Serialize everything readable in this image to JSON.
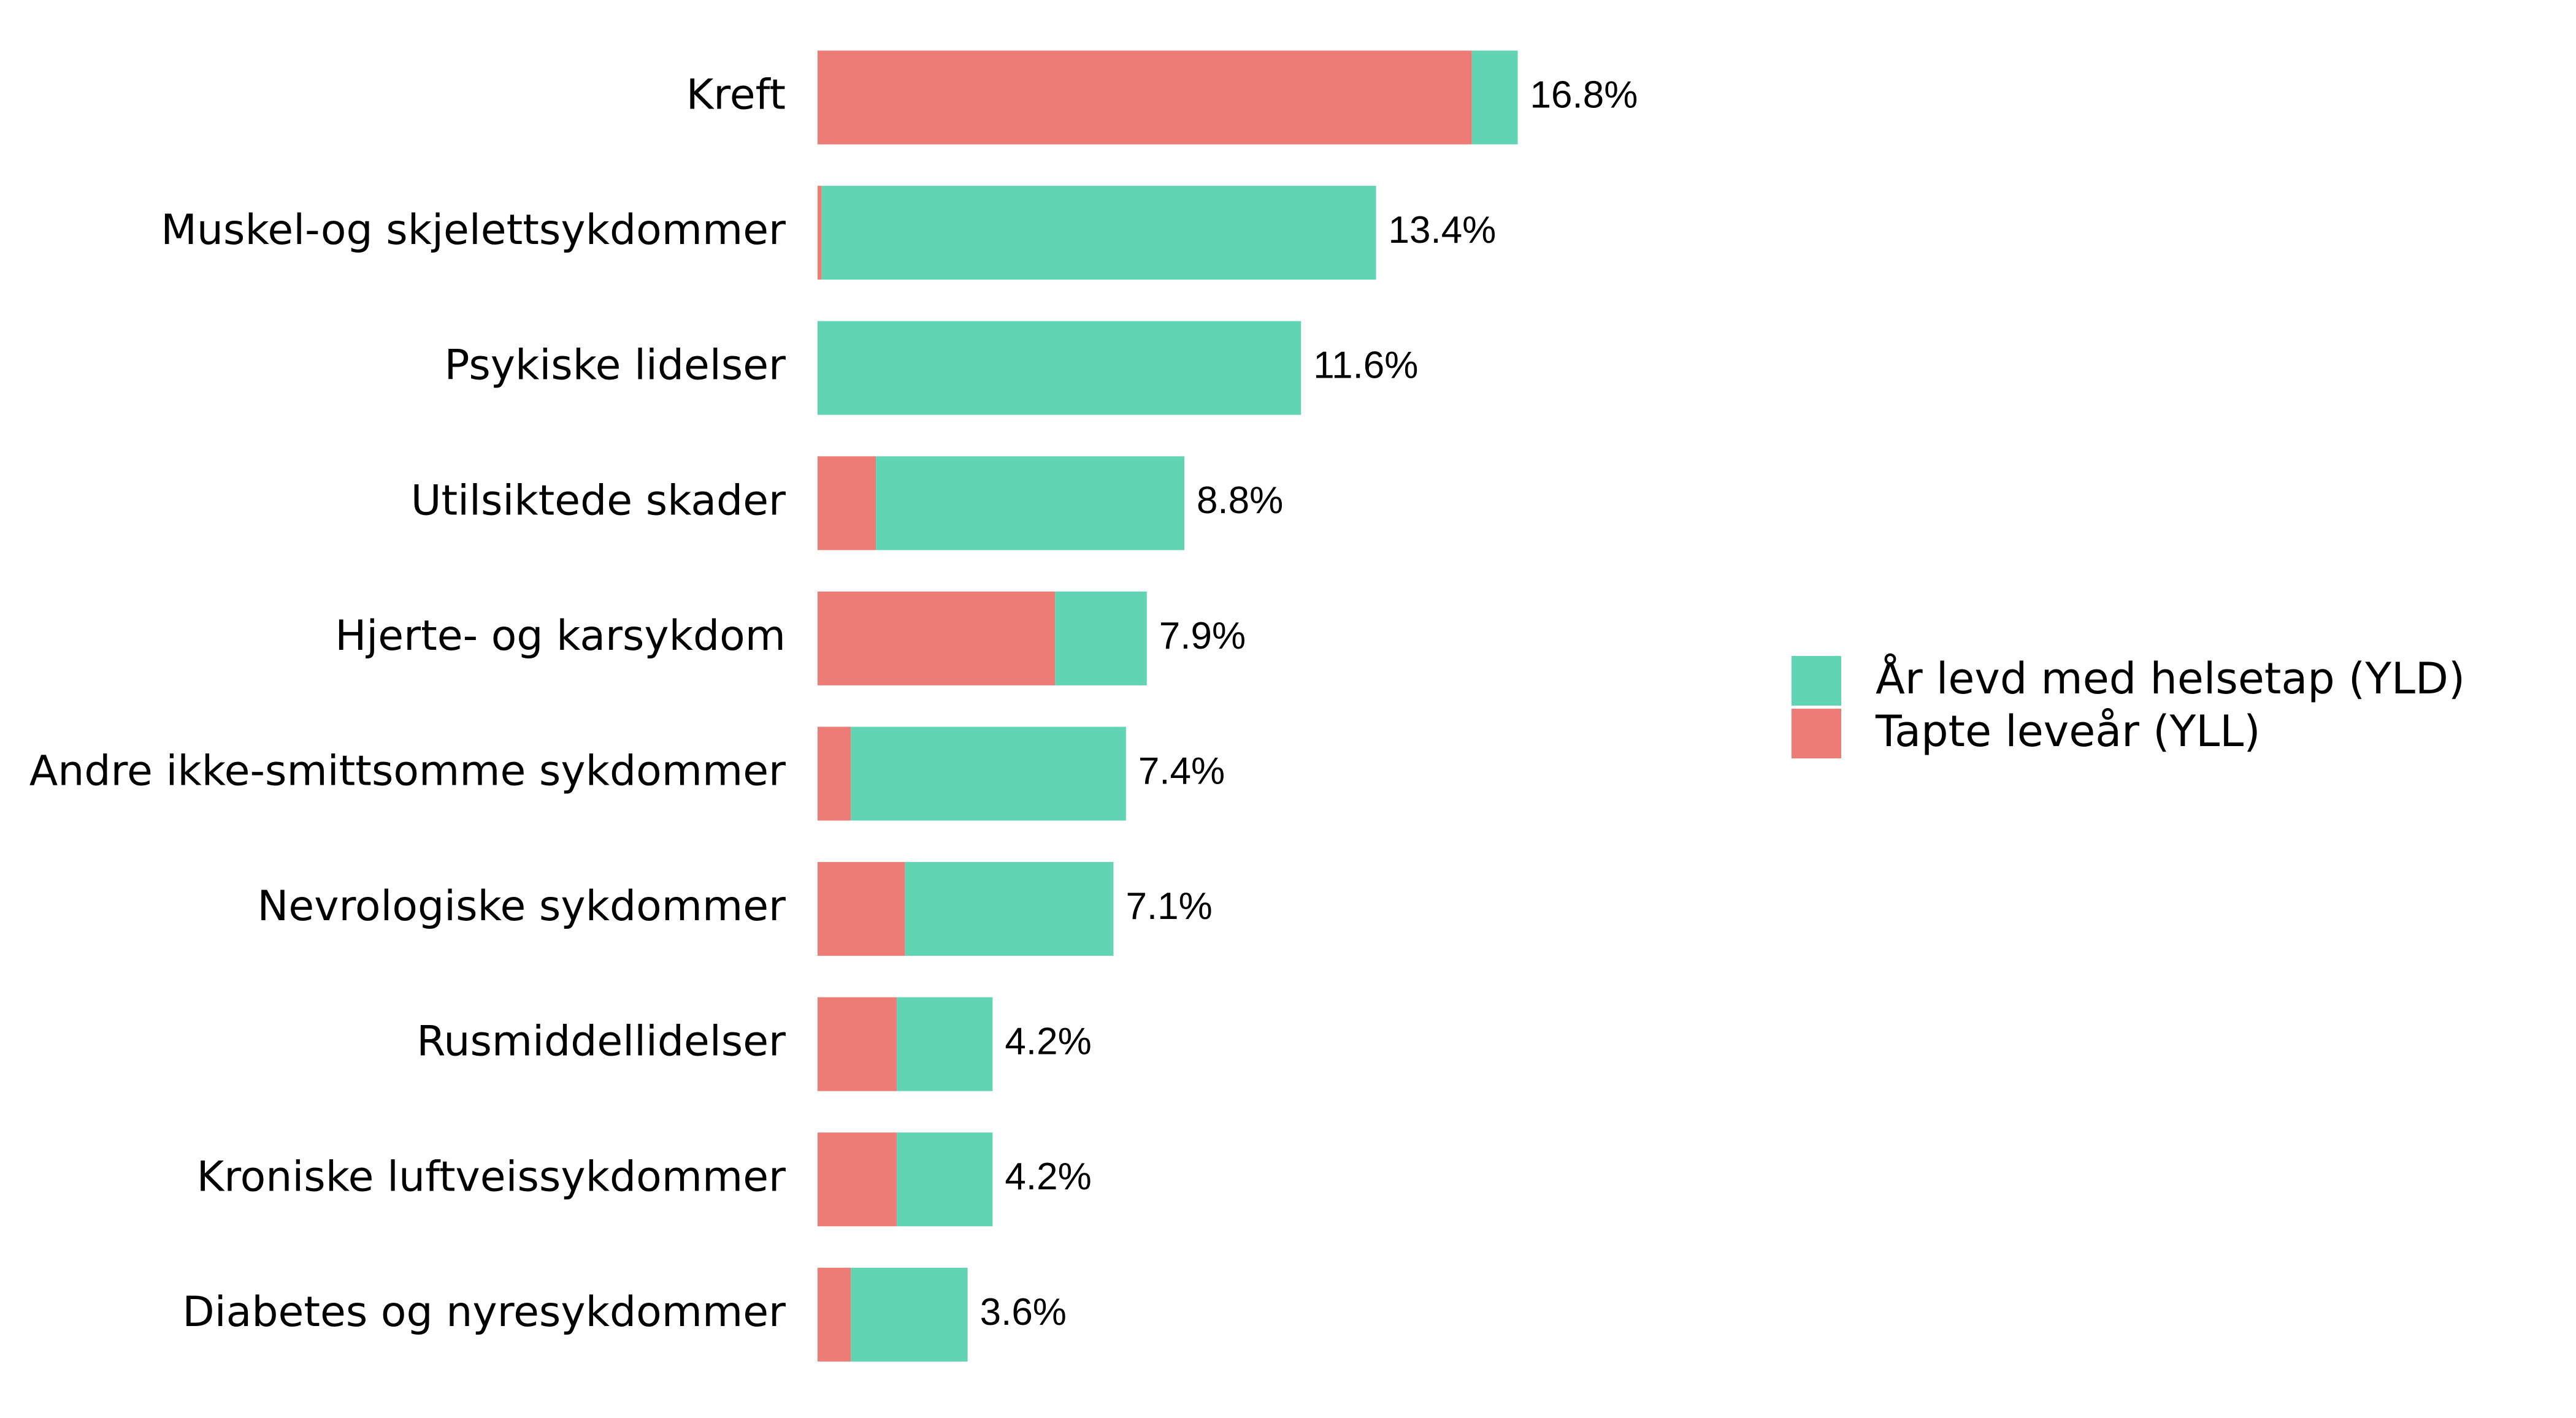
{
  "chart_data": {
    "type": "stacked-bar-horizontal",
    "categories": [
      "Kreft",
      "Muskel-og skjelettsykdommer",
      "Psykiske lidelser",
      "Utilsiktede skader",
      "Hjerte- og karsykdom",
      "Andre ikke-smittsomme sykdommer",
      "Nevrologiske sykdommer",
      "Rusmiddellidelser",
      "Kroniske luftveissykdommer",
      "Diabetes og nyresykdommer"
    ],
    "series": [
      {
        "name": "Tapte leveår (YLL)",
        "color": "#ec7c75",
        "values": [
          15.7,
          0.1,
          0,
          1.4,
          5.7,
          0.8,
          2.1,
          1.9,
          1.9,
          0.8
        ]
      },
      {
        "name": "År levd med helsetap (YLD)",
        "color": "#61d4b3",
        "values": [
          1.1,
          13.3,
          11.6,
          7.4,
          2.2,
          6.6,
          5.0,
          2.3,
          2.3,
          2.8
        ]
      }
    ],
    "totals": {
      "values": [
        16.8,
        13.4,
        11.6,
        8.8,
        7.9,
        7.4,
        7.1,
        4.2,
        4.2,
        3.6
      ],
      "value_labels": [
        "16.8%",
        "13.4%",
        "11.6%",
        "8.8%",
        "7.9%",
        "7.4%",
        "7.1%",
        "4.2%",
        "4.2%",
        "3.6%"
      ]
    },
    "legend": "right",
    "grid": false
  }
}
